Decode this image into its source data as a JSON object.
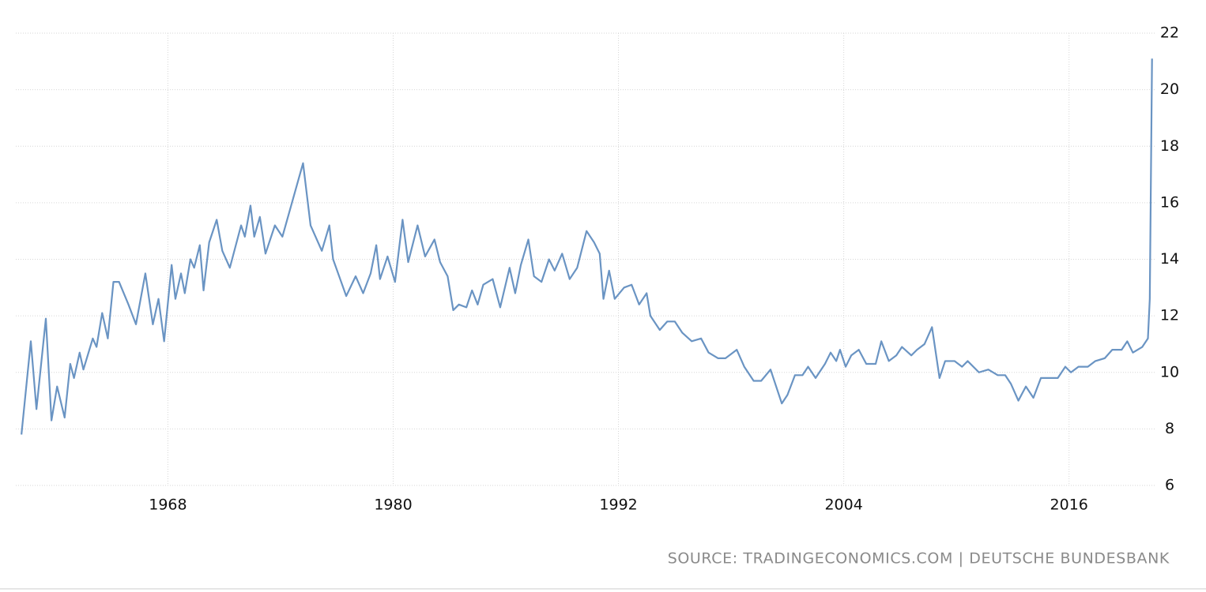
{
  "chart_data": {
    "type": "line",
    "color": "#6a94c3",
    "grid": true,
    "source": "SOURCE: TRADINGECONOMICS.COM | DEUTSCHE BUNDESBANK",
    "xlim": [
      1959.9,
      2020.6
    ],
    "xticks": [
      1968,
      1980,
      1992,
      2004,
      2016
    ],
    "ylim": [
      6,
      22
    ],
    "yticks": [
      6,
      8,
      10,
      12,
      14,
      16,
      18,
      20,
      22
    ],
    "x": [
      1960.2,
      1960.7,
      1961.0,
      1961.5,
      1961.8,
      1962.1,
      1962.5,
      1962.8,
      1963.0,
      1963.3,
      1963.5,
      1964.0,
      1964.2,
      1964.5,
      1964.8,
      1965.1,
      1965.4,
      1965.9,
      1966.3,
      1966.8,
      1967.2,
      1967.5,
      1967.8,
      1968.2,
      1968.4,
      1968.7,
      1968.9,
      1969.2,
      1969.4,
      1969.7,
      1969.9,
      1970.2,
      1970.6,
      1970.9,
      1971.3,
      1971.9,
      1972.1,
      1972.4,
      1972.6,
      1972.9,
      1973.2,
      1973.7,
      1974.1,
      1975.2,
      1975.6,
      1976.2,
      1976.6,
      1976.8,
      1977.5,
      1978.0,
      1978.4,
      1978.8,
      1979.1,
      1979.3,
      1979.7,
      1980.1,
      1980.5,
      1980.8,
      1981.3,
      1981.7,
      1982.2,
      1982.5,
      1982.9,
      1983.2,
      1983.5,
      1983.9,
      1984.2,
      1984.5,
      1984.8,
      1985.3,
      1985.7,
      1986.2,
      1986.5,
      1986.8,
      1987.2,
      1987.5,
      1987.9,
      1988.3,
      1988.6,
      1989.0,
      1989.4,
      1989.8,
      1990.3,
      1990.7,
      1991.0,
      1991.2,
      1991.5,
      1991.8,
      1992.3,
      1992.7,
      1993.1,
      1993.5,
      1993.7,
      1994.2,
      1994.6,
      1995.0,
      1995.4,
      1995.9,
      1996.4,
      1996.8,
      1997.3,
      1997.7,
      1998.3,
      1998.7,
      1999.2,
      1999.6,
      2000.1,
      2000.7,
      2001.0,
      2001.4,
      2001.8,
      2002.1,
      2002.5,
      2003.0,
      2003.3,
      2003.6,
      2003.8,
      2004.1,
      2004.4,
      2004.8,
      2005.2,
      2005.7,
      2006.0,
      2006.4,
      2006.8,
      2007.1,
      2007.6,
      2007.9,
      2008.3,
      2008.7,
      2009.1,
      2009.4,
      2009.9,
      2010.3,
      2010.6,
      2011.2,
      2011.7,
      2012.2,
      2012.6,
      2012.9,
      2013.3,
      2013.7,
      2014.1,
      2014.5,
      2015.0,
      2015.4,
      2015.8,
      2016.1,
      2016.5,
      2017.0,
      2017.4,
      2017.9,
      2018.3,
      2018.8,
      2019.1,
      2019.4,
      2019.9,
      2020.1,
      2020.2,
      2020.3,
      2020.42
    ],
    "values": [
      7.8,
      11.1,
      8.7,
      11.9,
      8.3,
      9.5,
      8.4,
      10.3,
      9.8,
      10.7,
      10.1,
      11.2,
      10.9,
      12.1,
      11.2,
      13.2,
      13.2,
      12.4,
      11.7,
      13.5,
      11.7,
      12.6,
      11.1,
      13.8,
      12.6,
      13.5,
      12.8,
      14.0,
      13.7,
      14.5,
      12.9,
      14.6,
      15.4,
      14.3,
      13.7,
      15.2,
      14.8,
      15.9,
      14.8,
      15.5,
      14.2,
      15.2,
      14.8,
      17.4,
      15.2,
      14.3,
      15.2,
      14.0,
      12.7,
      13.4,
      12.8,
      13.5,
      14.5,
      13.3,
      14.1,
      13.2,
      15.4,
      13.9,
      15.2,
      14.1,
      14.7,
      13.9,
      13.4,
      12.2,
      12.4,
      12.3,
      12.9,
      12.4,
      13.1,
      13.3,
      12.3,
      13.7,
      12.8,
      13.8,
      14.7,
      13.4,
      13.2,
      14.0,
      13.6,
      14.2,
      13.3,
      13.7,
      15.0,
      14.6,
      14.2,
      12.6,
      13.6,
      12.6,
      13.0,
      13.1,
      12.4,
      12.8,
      12.0,
      11.5,
      11.8,
      11.8,
      11.4,
      11.1,
      11.2,
      10.7,
      10.5,
      10.5,
      10.8,
      10.2,
      9.7,
      9.7,
      10.1,
      8.9,
      9.2,
      9.9,
      9.9,
      10.2,
      9.8,
      10.3,
      10.7,
      10.4,
      10.8,
      10.2,
      10.6,
      10.8,
      10.3,
      10.3,
      11.1,
      10.4,
      10.6,
      10.9,
      10.6,
      10.8,
      11.0,
      11.6,
      9.8,
      10.4,
      10.4,
      10.2,
      10.4,
      10.0,
      10.1,
      9.9,
      9.9,
      9.6,
      9.0,
      9.5,
      9.1,
      9.8,
      9.8,
      9.8,
      10.2,
      10.0,
      10.2,
      10.2,
      10.4,
      10.5,
      10.8,
      10.8,
      11.1,
      10.7,
      10.9,
      11.1,
      11.2,
      12.6,
      21.1
    ]
  }
}
